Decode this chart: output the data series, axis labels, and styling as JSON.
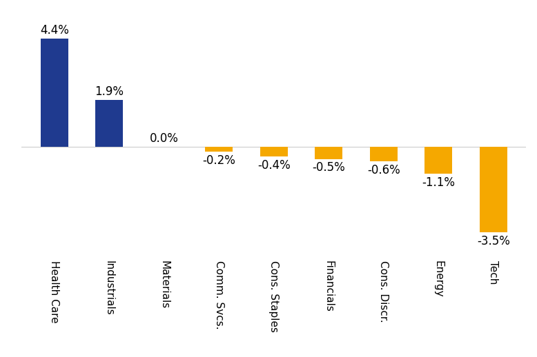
{
  "categories": [
    "Health Care",
    "Industrials",
    "Materials",
    "Comm. Svcs.",
    "Cons. Staples",
    "Financials",
    "Cons. Discr.",
    "Energy",
    "Tech"
  ],
  "values": [
    4.4,
    1.9,
    0.0,
    -0.2,
    -0.4,
    -0.5,
    -0.6,
    -1.1,
    -3.5
  ],
  "labels": [
    "4.4%",
    "1.9%",
    "0.0%",
    "-0.2%",
    "-0.4%",
    "-0.5%",
    "-0.6%",
    "-1.1%",
    "-3.5%"
  ],
  "positive_color": "#1f3a8f",
  "negative_color": "#f5a800",
  "background_color": "#ffffff",
  "ylim": [
    -4.5,
    5.4
  ],
  "label_fontsize": 12,
  "tick_fontsize": 11,
  "bar_width": 0.5
}
